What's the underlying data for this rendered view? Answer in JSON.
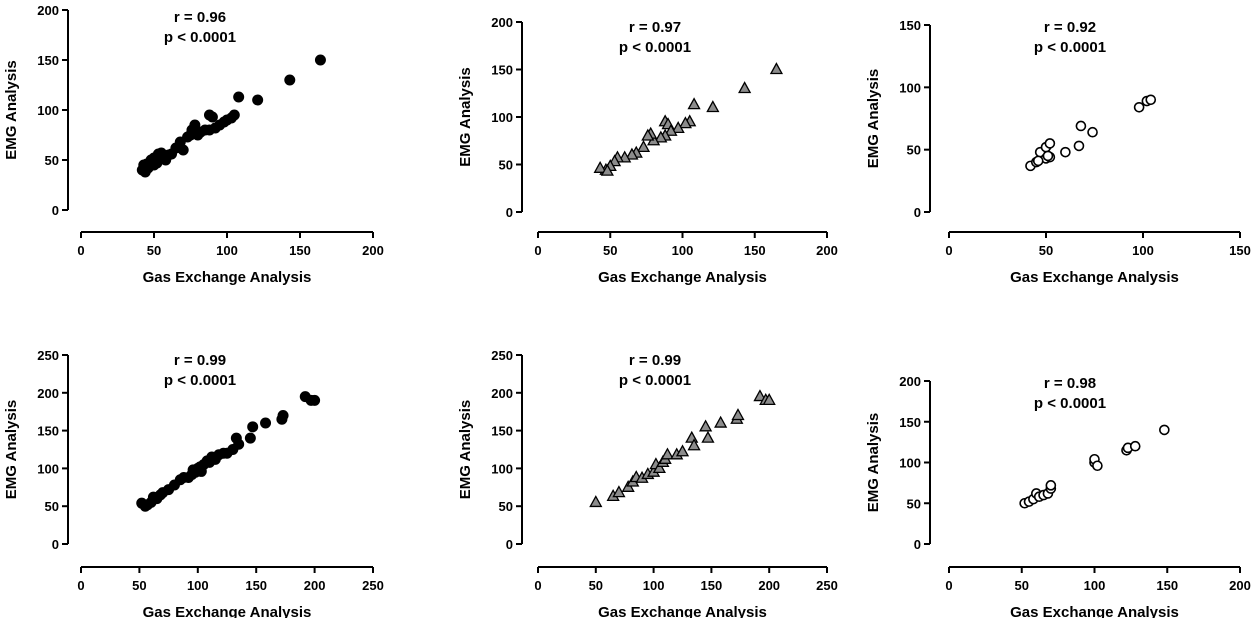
{
  "chart_data": [
    {
      "type": "scatter",
      "title": "",
      "annotation": [
        "r = 0.96",
        "p < 0.0001"
      ],
      "xlabel": "Gas Exchange Analysis",
      "ylabel": "EMG Analysis",
      "xlim": [
        0,
        200
      ],
      "ylim": [
        0,
        200
      ],
      "xticks": [
        0,
        50,
        100,
        150,
        200
      ],
      "yticks": [
        0,
        50,
        100,
        150,
        200
      ],
      "marker": "filled-circle",
      "color": "#000000",
      "points": [
        [
          164,
          150
        ],
        [
          143,
          130
        ],
        [
          108,
          113
        ],
        [
          121,
          110
        ],
        [
          88,
          95
        ],
        [
          90,
          93
        ],
        [
          105,
          95
        ],
        [
          103,
          92
        ],
        [
          100,
          90
        ],
        [
          98,
          88
        ],
        [
          95,
          85
        ],
        [
          92,
          82
        ],
        [
          85,
          80
        ],
        [
          82,
          78
        ],
        [
          78,
          85
        ],
        [
          76,
          80
        ],
        [
          75,
          75
        ],
        [
          73,
          73
        ],
        [
          68,
          68
        ],
        [
          65,
          62
        ],
        [
          62,
          56
        ],
        [
          60,
          55
        ],
        [
          58,
          50
        ],
        [
          55,
          57
        ],
        [
          53,
          56
        ],
        [
          50,
          52
        ],
        [
          48,
          50
        ],
        [
          45,
          46
        ],
        [
          43,
          45
        ],
        [
          42,
          40
        ],
        [
          44,
          38
        ],
        [
          46,
          42
        ],
        [
          50,
          45
        ],
        [
          52,
          47
        ],
        [
          70,
          60
        ],
        [
          80,
          75
        ],
        [
          88,
          80
        ]
      ]
    },
    {
      "type": "scatter",
      "title": "",
      "annotation": [
        "r = 0.97",
        "p < 0.0001"
      ],
      "xlabel": "Gas Exchange Analysis",
      "ylabel": "EMG Analysis",
      "xlim": [
        0,
        200
      ],
      "ylim": [
        0,
        200
      ],
      "xticks": [
        0,
        50,
        100,
        150,
        200
      ],
      "yticks": [
        0,
        50,
        100,
        150,
        200
      ],
      "marker": "triangle",
      "color": "#8c8c8c",
      "points": [
        [
          165,
          150
        ],
        [
          143,
          130
        ],
        [
          108,
          113
        ],
        [
          121,
          110
        ],
        [
          88,
          95
        ],
        [
          90,
          92
        ],
        [
          105,
          95
        ],
        [
          102,
          93
        ],
        [
          97,
          88
        ],
        [
          92,
          85
        ],
        [
          88,
          80
        ],
        [
          85,
          78
        ],
        [
          80,
          75
        ],
        [
          78,
          82
        ],
        [
          76,
          80
        ],
        [
          73,
          68
        ],
        [
          68,
          62
        ],
        [
          65,
          60
        ],
        [
          60,
          57
        ],
        [
          55,
          57
        ],
        [
          53,
          53
        ],
        [
          50,
          48
        ],
        [
          47,
          44
        ],
        [
          43,
          46
        ],
        [
          48,
          43
        ]
      ]
    },
    {
      "type": "scatter",
      "title": "",
      "annotation": [
        "r = 0.92",
        "p < 0.0001"
      ],
      "xlabel": "Gas Exchange Analysis",
      "ylabel": "EMG Analysis",
      "xlim": [
        0,
        150
      ],
      "ylim": [
        0,
        150
      ],
      "xticks": [
        0,
        50,
        100,
        150
      ],
      "yticks": [
        0,
        50,
        100,
        150
      ],
      "marker": "open-circle",
      "color": "#ffffff",
      "points": [
        [
          42,
          37
        ],
        [
          45,
          40
        ],
        [
          47,
          48
        ],
        [
          50,
          43
        ],
        [
          50,
          52
        ],
        [
          52,
          55
        ],
        [
          52,
          44
        ],
        [
          60,
          48
        ],
        [
          67,
          53
        ],
        [
          68,
          69
        ],
        [
          74,
          64
        ],
        [
          98,
          84
        ],
        [
          102,
          89
        ],
        [
          104,
          90
        ],
        [
          46,
          41
        ],
        [
          51,
          45
        ]
      ]
    },
    {
      "type": "scatter",
      "title": "",
      "annotation": [
        "r = 0.99",
        "p < 0.0001"
      ],
      "xlabel": "Gas Exchange Analysis",
      "ylabel": "EMG Analysis",
      "xlim": [
        0,
        250
      ],
      "ylim": [
        0,
        250
      ],
      "xticks": [
        0,
        50,
        100,
        150,
        200,
        250
      ],
      "yticks": [
        0,
        50,
        100,
        150,
        200,
        250
      ],
      "marker": "filled-circle",
      "color": "#000000",
      "points": [
        [
          52,
          54
        ],
        [
          55,
          50
        ],
        [
          57,
          52
        ],
        [
          60,
          55
        ],
        [
          62,
          62
        ],
        [
          65,
          60
        ],
        [
          68,
          65
        ],
        [
          70,
          68
        ],
        [
          75,
          72
        ],
        [
          80,
          78
        ],
        [
          85,
          85
        ],
        [
          88,
          88
        ],
        [
          92,
          88
        ],
        [
          95,
          92
        ],
        [
          98,
          95
        ],
        [
          100,
          100
        ],
        [
          102,
          102
        ],
        [
          105,
          105
        ],
        [
          108,
          110
        ],
        [
          110,
          108
        ],
        [
          112,
          115
        ],
        [
          115,
          112
        ],
        [
          118,
          118
        ],
        [
          122,
          120
        ],
        [
          125,
          120
        ],
        [
          130,
          125
        ],
        [
          133,
          140
        ],
        [
          135,
          132
        ],
        [
          145,
          140
        ],
        [
          147,
          155
        ],
        [
          158,
          160
        ],
        [
          172,
          165
        ],
        [
          173,
          170
        ],
        [
          192,
          195
        ],
        [
          197,
          190
        ],
        [
          200,
          190
        ],
        [
          96,
          98
        ],
        [
          103,
          96
        ]
      ]
    },
    {
      "type": "scatter",
      "title": "",
      "annotation": [
        "r = 0.99",
        "p < 0.0001"
      ],
      "xlabel": "Gas Exchange Analysis",
      "ylabel": "EMG Analysis",
      "xlim": [
        0,
        250
      ],
      "ylim": [
        0,
        250
      ],
      "xticks": [
        0,
        50,
        100,
        150,
        200,
        250
      ],
      "yticks": [
        0,
        50,
        100,
        150,
        200,
        250
      ],
      "marker": "triangle",
      "color": "#8c8c8c",
      "points": [
        [
          50,
          55
        ],
        [
          65,
          63
        ],
        [
          70,
          68
        ],
        [
          78,
          75
        ],
        [
          82,
          82
        ],
        [
          85,
          88
        ],
        [
          90,
          87
        ],
        [
          95,
          92
        ],
        [
          100,
          95
        ],
        [
          102,
          105
        ],
        [
          105,
          100
        ],
        [
          108,
          108
        ],
        [
          110,
          112
        ],
        [
          112,
          118
        ],
        [
          120,
          118
        ],
        [
          125,
          122
        ],
        [
          133,
          140
        ],
        [
          135,
          130
        ],
        [
          145,
          155
        ],
        [
          147,
          140
        ],
        [
          158,
          160
        ],
        [
          172,
          165
        ],
        [
          173,
          170
        ],
        [
          192,
          195
        ],
        [
          197,
          190
        ],
        [
          200,
          190
        ]
      ]
    },
    {
      "type": "scatter",
      "title": "",
      "annotation": [
        "r = 0.98",
        "p < 0.0001"
      ],
      "xlabel": "Gas Exchange Analysis",
      "ylabel": "EMG Analysis",
      "xlim": [
        0,
        200
      ],
      "ylim": [
        0,
        200
      ],
      "xticks": [
        0,
        50,
        100,
        150,
        200
      ],
      "yticks": [
        0,
        50,
        100,
        150,
        200
      ],
      "marker": "open-circle",
      "color": "#ffffff",
      "points": [
        [
          52,
          50
        ],
        [
          55,
          52
        ],
        [
          58,
          55
        ],
        [
          60,
          62
        ],
        [
          62,
          58
        ],
        [
          65,
          60
        ],
        [
          68,
          62
        ],
        [
          70,
          68
        ],
        [
          70,
          72
        ],
        [
          100,
          100
        ],
        [
          100,
          104
        ],
        [
          102,
          96
        ],
        [
          122,
          115
        ],
        [
          123,
          118
        ],
        [
          128,
          120
        ],
        [
          148,
          140
        ]
      ]
    }
  ]
}
